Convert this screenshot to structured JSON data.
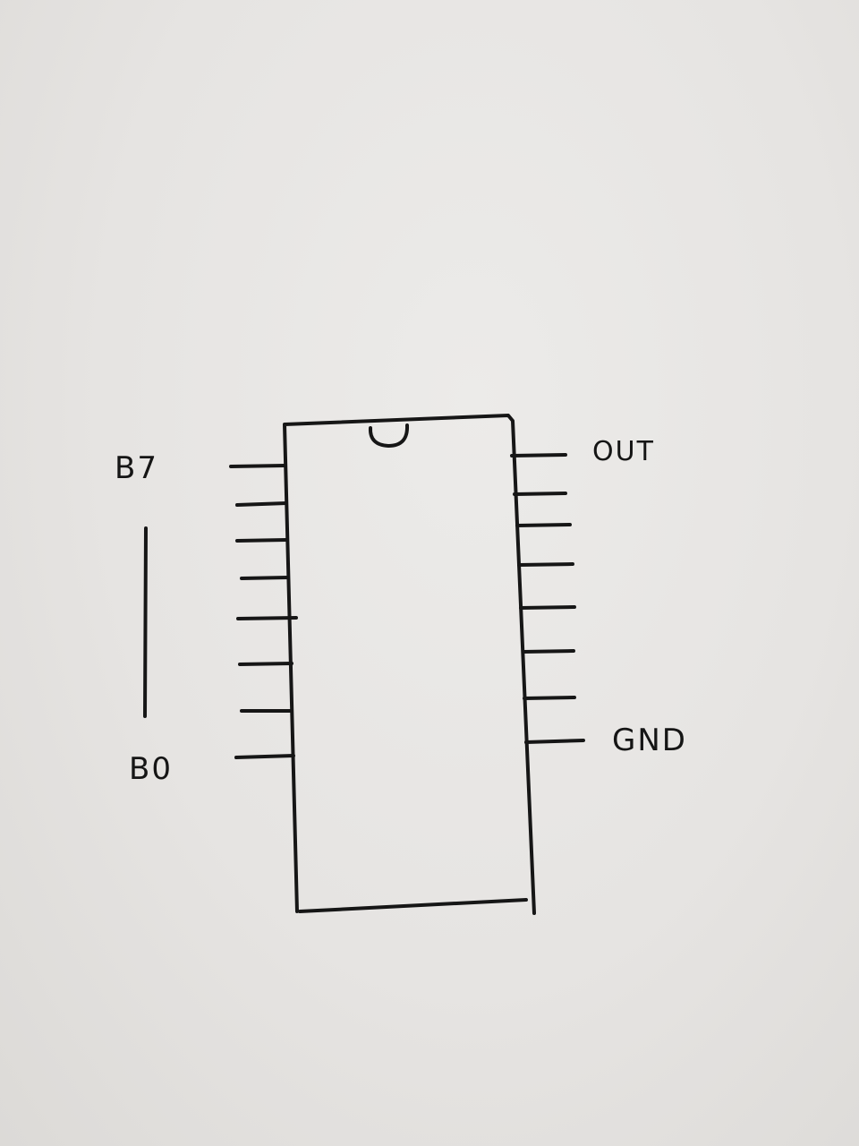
{
  "labels": {
    "b7": "B7",
    "b0": "B0",
    "out": "OUT",
    "gnd": "GND"
  },
  "pins_per_side": 8,
  "ink_color": "#161616",
  "paper_color": "#e7e5e3"
}
